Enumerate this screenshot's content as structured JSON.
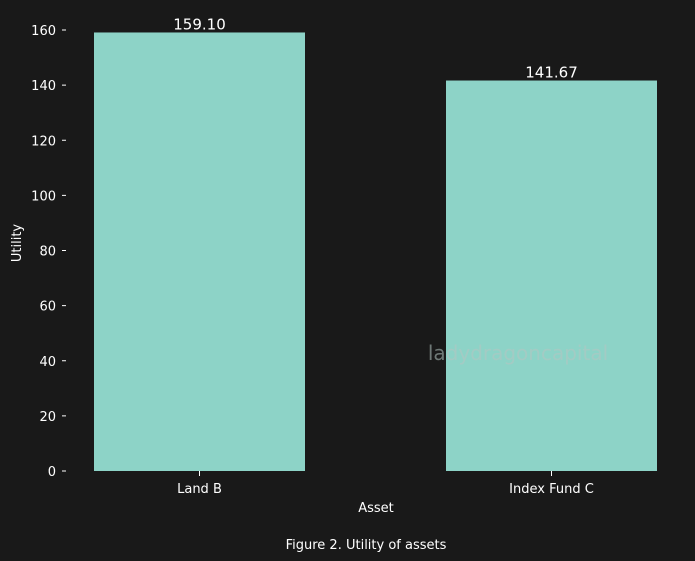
{
  "chart_data": {
    "type": "bar",
    "categories": [
      "Land B",
      "Index Fund C"
    ],
    "values": [
      159.1,
      141.67
    ],
    "data_labels": [
      "159.10",
      "141.67"
    ],
    "xlabel": "Asset",
    "ylabel": "Utility",
    "ylim": [
      0,
      160
    ],
    "yticks": [
      0,
      20,
      40,
      60,
      80,
      100,
      120,
      140,
      160
    ],
    "grid": false,
    "legend": "none"
  },
  "caption": "Figure 2. Utility of assets",
  "watermark": "ladydragoncapital",
  "colors": {
    "background": "#191919",
    "bar": "#8dd3c7",
    "text": "#ffffff"
  }
}
